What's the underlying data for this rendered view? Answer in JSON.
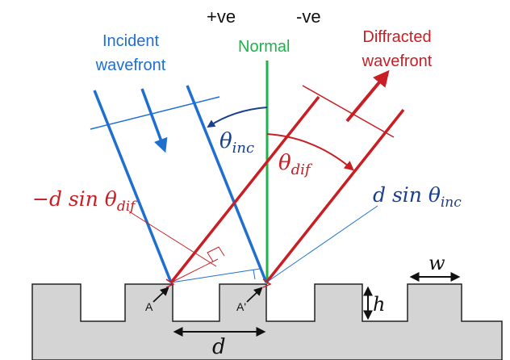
{
  "labels": {
    "positive_sign": "+ve",
    "negative_sign": "-ve",
    "normal": "Normal",
    "incident_line1": "Incident",
    "incident_line2": "wavefront",
    "diffracted_line1": "Diffracted",
    "diffracted_line2": "wavefront",
    "theta_inc_symbol": "θ",
    "theta_inc_subscript": "inc",
    "theta_dif_symbol": "θ",
    "theta_dif_subscript": "dif",
    "path_neg_prefix": "−d sin θ",
    "path_neg_subscript": "dif",
    "path_pos_prefix": "d sin θ",
    "path_pos_subscript": "inc",
    "point_a": "A",
    "point_a_prime": "A'",
    "groove_width": "w",
    "groove_height": "h",
    "groove_period": "d"
  },
  "colors": {
    "incident": "#1f6fd1",
    "diffracted": "#c81e24",
    "normal": "#1fb24a",
    "grating_fill": "#d4d4d4",
    "outline": "#222222",
    "theta_text": "#1a3f8f"
  }
}
